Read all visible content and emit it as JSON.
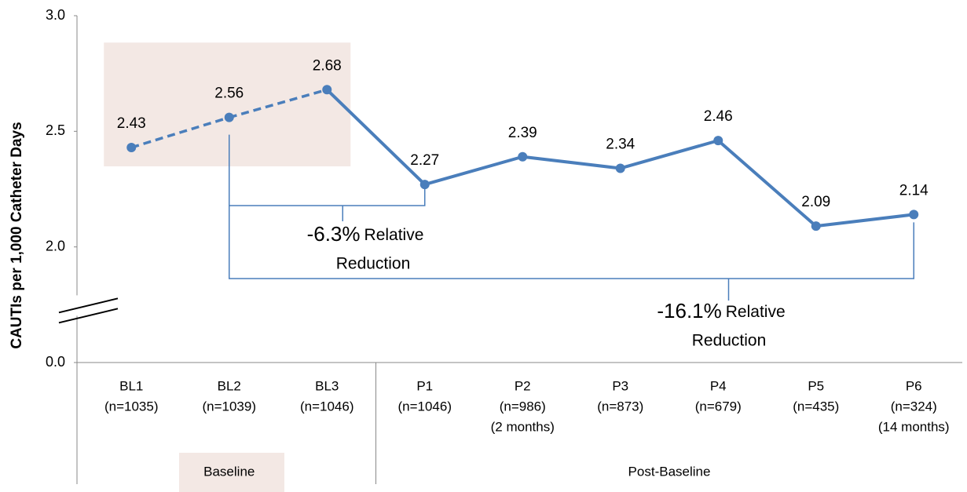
{
  "chart_data": {
    "type": "line",
    "y_label": "CAUTIs per 1,000 Catheter Days",
    "categories": [
      [
        "BL1",
        "(n=1035)"
      ],
      [
        "BL2",
        "(n=1039)"
      ],
      [
        "BL3",
        "(n=1046)"
      ],
      [
        "P1",
        "(n=1046)"
      ],
      [
        "P2",
        "(n=986)",
        "(2 months)"
      ],
      [
        "P3",
        "(n=873)"
      ],
      [
        "P4",
        "(n=679)"
      ],
      [
        "P5",
        "(n=435)"
      ],
      [
        "P6",
        "(n=324)",
        "(14 months)"
      ]
    ],
    "series": [
      {
        "color": "#4a7ebb",
        "values": [
          2.43,
          2.56,
          2.68,
          2.27,
          2.39,
          2.34,
          2.46,
          2.09,
          2.14
        ]
      }
    ],
    "groups": [
      {
        "label": "Baseline",
        "start": 0,
        "end": 2,
        "dashed": true,
        "shade": "#f3e8e4"
      },
      {
        "label": "Post-Baseline",
        "start": 3,
        "end": 8
      }
    ],
    "ylim": [
      0,
      3
    ],
    "yticks": [
      {
        "value": 0,
        "label": "0.0"
      },
      {
        "value": 2,
        "label": "2.0"
      },
      {
        "value": 2.5,
        "label": "2.5"
      },
      {
        "value": 3,
        "label": "3.0"
      }
    ],
    "axis_break": true,
    "annotations": [
      {
        "value_text": "-6.3%",
        "text": "Relative",
        "text2": "Reduction"
      },
      {
        "value_text": "-16.1%",
        "text": "Relative",
        "text2": "Reduction"
      }
    ]
  }
}
